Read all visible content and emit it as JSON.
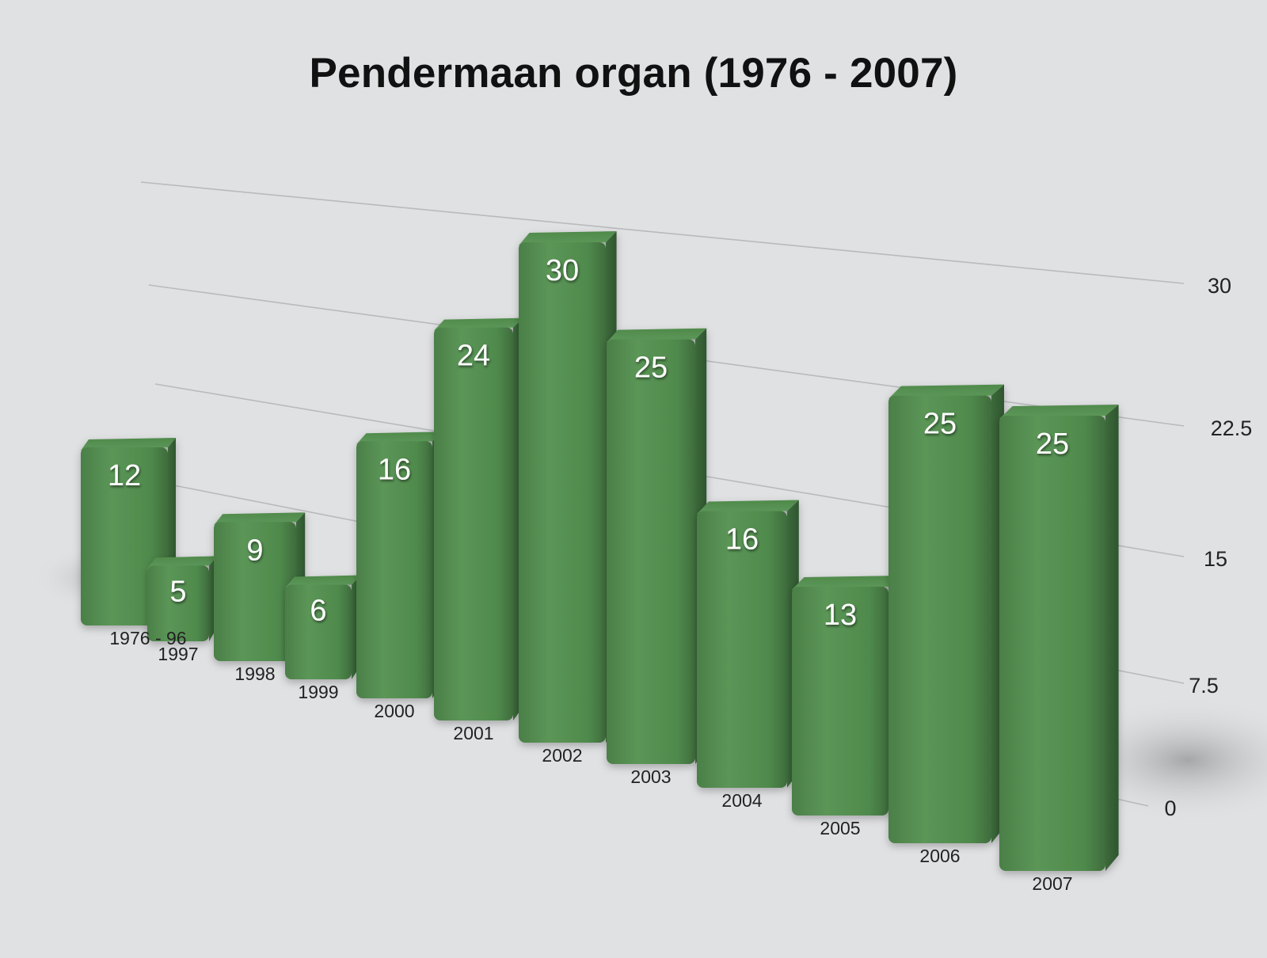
{
  "chart_data": {
    "type": "bar",
    "title": "Pendermaan organ (1976 - 2007)",
    "categories": [
      "1976 - 96",
      "1997",
      "1998",
      "1999",
      "2000",
      "2001",
      "2002",
      "2003",
      "2004",
      "2005",
      "2006",
      "2007"
    ],
    "values": [
      12,
      5,
      9,
      6,
      16,
      24,
      30,
      25,
      16,
      13,
      25,
      25
    ],
    "ylim": [
      0,
      30
    ],
    "yticks": [
      "0",
      "7.5",
      "15",
      "22.5",
      "30"
    ],
    "grid": true,
    "style": "3d-perspective",
    "bar_color": "#5a9556"
  }
}
